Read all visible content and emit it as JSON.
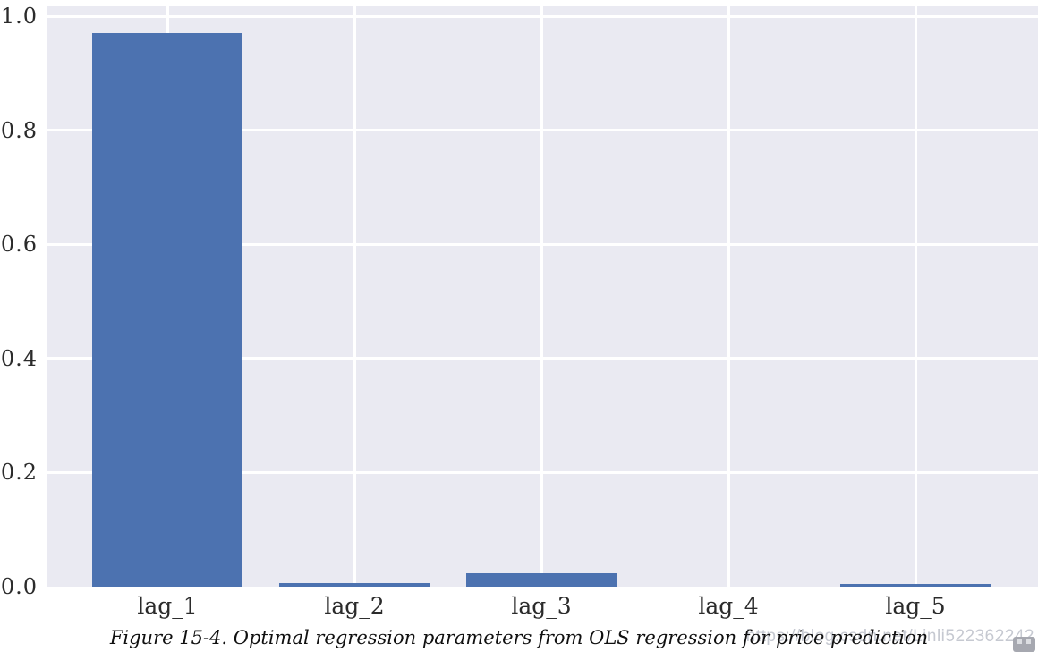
{
  "figure": {
    "caption": "Figure 15-4. Optimal regression parameters from OLS regression for price prediction"
  },
  "watermark": {
    "text": "https://blog.csdn.net/Linli522362242",
    "icon": "image-watermark-icon"
  },
  "chart_data": {
    "type": "bar",
    "title": "",
    "xlabel": "",
    "ylabel": "",
    "categories": [
      "lag_1",
      "lag_2",
      "lag_3",
      "lag_4",
      "lag_5"
    ],
    "values": [
      0.97,
      0.006,
      0.024,
      0.0,
      0.004
    ],
    "ylim": [
      0.0,
      1.0
    ],
    "yticks": [
      0.0,
      0.2,
      0.4,
      0.6,
      0.8,
      1.0
    ],
    "ytick_labels": [
      "0.0",
      "0.2",
      "0.4",
      "0.6",
      "0.8",
      "1.0"
    ],
    "grid": true,
    "legend": "none",
    "style": "seaborn-darkgrid",
    "colors": {
      "bar": "#4C72B0",
      "plot_background": "#EAEAF2",
      "gridline": "#FFFFFF",
      "tick_text": "#2b2b2b",
      "caption_text": "#101010",
      "watermark_text": "#c6c9d1"
    }
  }
}
